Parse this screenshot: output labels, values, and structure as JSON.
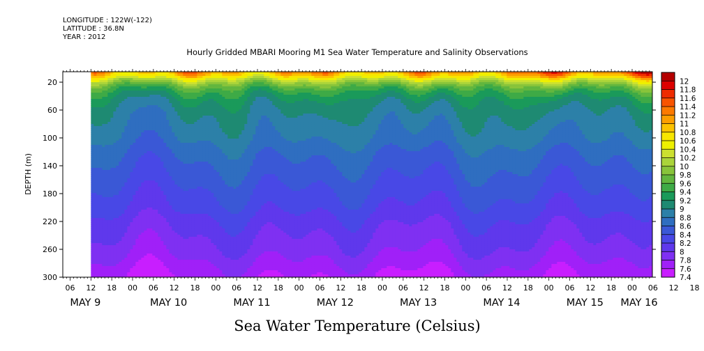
{
  "meta": {
    "longitude": "LONGITUDE : 122W(-122)",
    "latitude": "LATITUDE : 36.8N",
    "year": "YEAR : 2012"
  },
  "chart_data": {
    "type": "heatmap",
    "title": "Hourly Gridded MBARI Mooring M1 Sea Water Temperature and Salinity Observations",
    "xlabel": "Sea Water Temperature (Celsius)",
    "ylabel": "DEPTH (m)",
    "ylim": [
      300,
      5
    ],
    "y_reversed": true,
    "y_ticks": [
      20,
      60,
      100,
      140,
      180,
      220,
      260,
      300
    ],
    "x_hour_ticks": [
      "06",
      "12",
      "18",
      "00",
      "06",
      "12",
      "18",
      "00",
      "06",
      "12",
      "18",
      "00",
      "06",
      "12",
      "18",
      "00",
      "06",
      "12",
      "18",
      "00",
      "06",
      "12",
      "18",
      "00",
      "06",
      "12",
      "18",
      "00",
      "06",
      "12",
      "18",
      "00"
    ],
    "x_day_labels": [
      "MAY  9",
      "MAY 10",
      "MAY 11",
      "MAY 12",
      "MAY 13",
      "MAY 14",
      "MAY 15",
      "MAY 16"
    ],
    "data_start": "2012-05-09 12:00",
    "data_end": "2012-05-16 06:00",
    "colorbar": {
      "levels": [
        7.4,
        7.6,
        7.8,
        8,
        8.2,
        8.4,
        8.6,
        8.8,
        9,
        9.2,
        9.4,
        9.6,
        9.8,
        10,
        10.2,
        10.4,
        10.6,
        10.8,
        11,
        11.2,
        11.4,
        11.6,
        11.8,
        12
      ],
      "colors": [
        "#c81eff",
        "#a020f8",
        "#7f30f2",
        "#5f38ec",
        "#4848e6",
        "#3a58d6",
        "#2f6ec0",
        "#2c80a8",
        "#1e8a72",
        "#1a9a5a",
        "#3eaa46",
        "#62b63e",
        "#88c43a",
        "#aad43a",
        "#cce030",
        "#eef000",
        "#f8e600",
        "#fcc200",
        "#fc9e00",
        "#fc7a00",
        "#f85400",
        "#ee2c00",
        "#dc0000",
        "#b40000"
      ]
    },
    "profile": {
      "depth_m": [
        5,
        10,
        14,
        20,
        26,
        34,
        45,
        60,
        80,
        100,
        120,
        140,
        160,
        180,
        200,
        220,
        240,
        260,
        280,
        300
      ],
      "temperature_c": [
        11.0,
        10.7,
        10.3,
        9.9,
        9.6,
        9.35,
        9.15,
        9.0,
        8.9,
        8.8,
        8.65,
        8.55,
        8.45,
        8.35,
        8.25,
        8.1,
        8.0,
        7.9,
        7.75,
        7.6
      ]
    }
  }
}
